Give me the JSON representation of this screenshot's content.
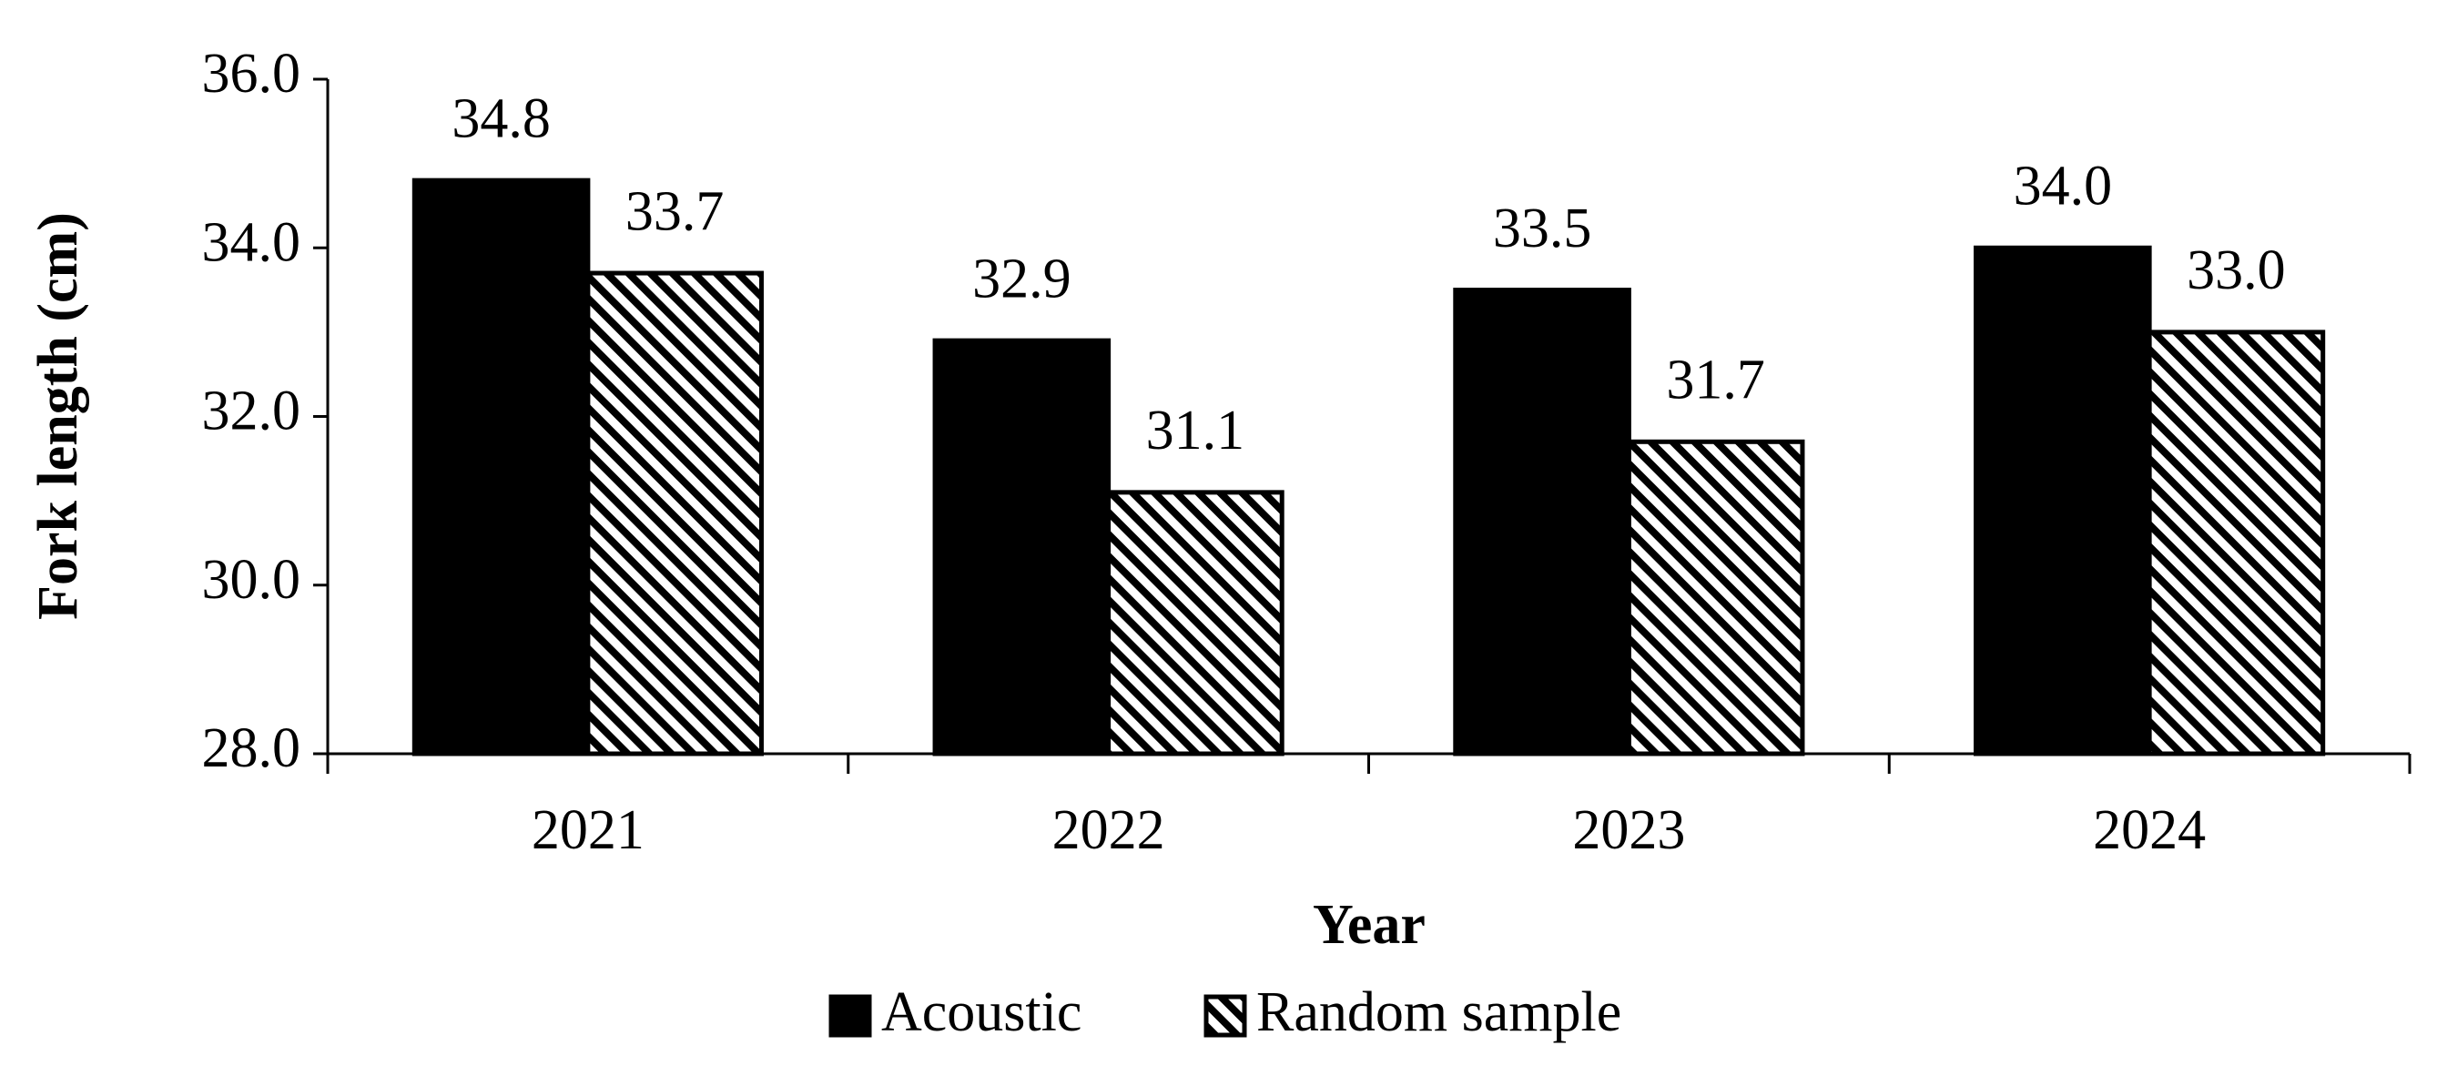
{
  "chart_data": {
    "type": "bar",
    "x_label": "Year",
    "y_label": "Fork length (cm)",
    "categories": [
      "2021",
      "2022",
      "2023",
      "2024"
    ],
    "series": [
      {
        "name": "Acoustic",
        "color": "#000000",
        "hatch": false,
        "values": [
          34.8,
          32.9,
          33.5,
          34.0
        ],
        "value_labels": [
          "34.8",
          "32.9",
          "33.5",
          "34.0"
        ]
      },
      {
        "name": "Random sample",
        "color": "#000000",
        "hatch": true,
        "values": [
          33.7,
          31.1,
          31.7,
          33.0
        ],
        "value_labels": [
          "33.7",
          "31.1",
          "31.7",
          "33.0"
        ]
      }
    ],
    "ylim": [
      28,
      36
    ],
    "yticks": [
      {
        "value": 28,
        "label": "28.0"
      },
      {
        "value": 30,
        "label": "30.0"
      },
      {
        "value": 32,
        "label": "32.0"
      },
      {
        "value": 34,
        "label": "34.0"
      },
      {
        "value": 36,
        "label": "36.0"
      }
    ],
    "grid": false,
    "legend": "bottom"
  }
}
